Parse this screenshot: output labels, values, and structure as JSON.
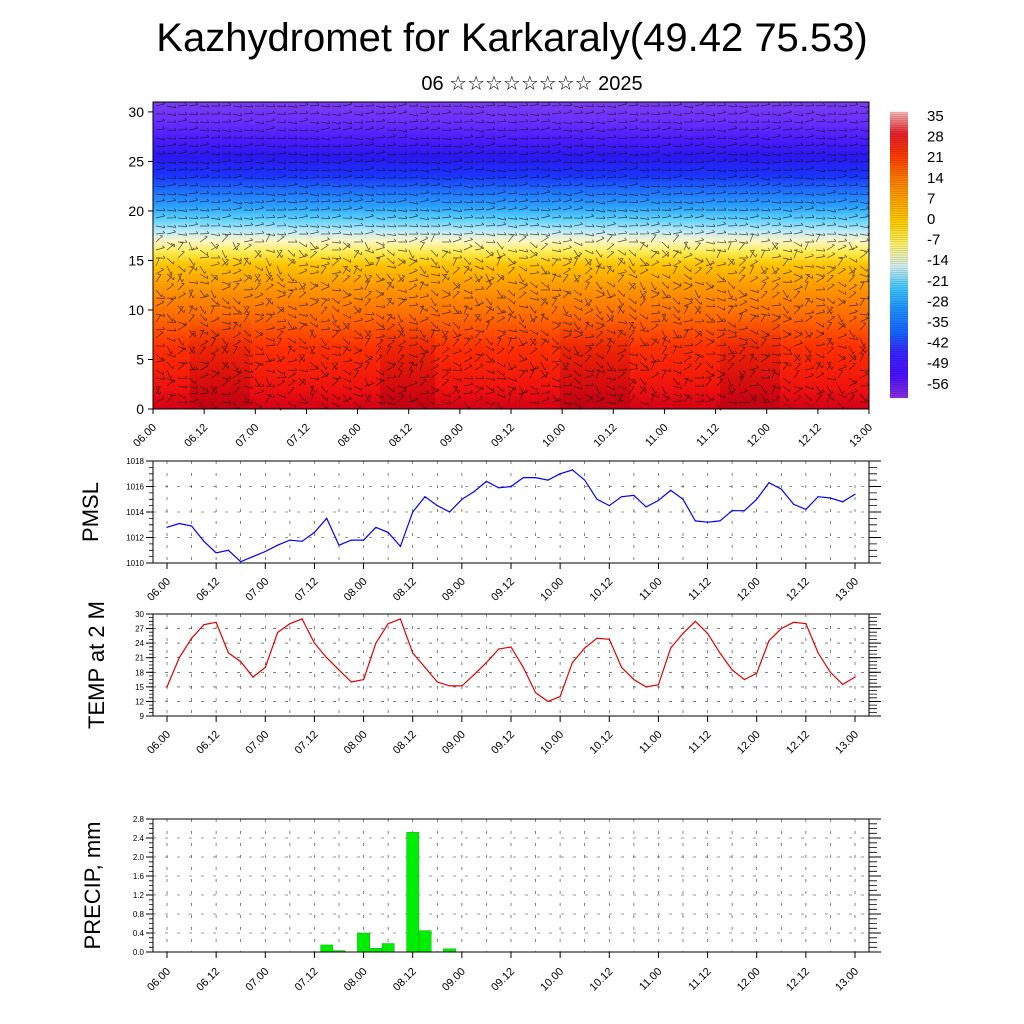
{
  "title": "Kazhydromet for Karkaraly(49.42 75.53)",
  "subtitle": "06 ☆☆☆☆☆☆☆☆ 2025",
  "chart_data": [
    {
      "type": "heatmap",
      "name": "temperature-wind cross-section",
      "ylim": [
        0,
        31
      ],
      "yticks": [
        0,
        5,
        10,
        15,
        20,
        25,
        30
      ],
      "x_tick_labels": [
        "06.00",
        "06.12",
        "07.00",
        "07.12",
        "08.00",
        "08.12",
        "09.00",
        "09.12",
        "10.00",
        "10.12",
        "11.00",
        "11.12",
        "12.00",
        "12.12",
        "13.00"
      ],
      "colorbar_labels": [
        "35",
        "28",
        "21",
        "14",
        "7",
        "0",
        "-7",
        "-14",
        "-21",
        "-28",
        "-35",
        "-42",
        "-49",
        "-56"
      ],
      "colorbar_colors": [
        "#f4b8b8",
        "#e8202a",
        "#ff3b00",
        "#ff7a00",
        "#ffa500",
        "#ffd000",
        "#fff36b",
        "#d8f0f0",
        "#3fc8ff",
        "#1e90ff",
        "#1565ff",
        "#3a22ff",
        "#4a10ff",
        "#8a2ee0"
      ]
    },
    {
      "type": "line",
      "name": "pmsl",
      "ylabel": "PMSL",
      "ylim": [
        1010,
        1018
      ],
      "yticks": [
        1010,
        1012,
        1014,
        1016,
        1018
      ],
      "x_tick_labels": [
        "06.00",
        "06.12",
        "07.00",
        "07.12",
        "08.00",
        "08.12",
        "09.00",
        "09.12",
        "10.00",
        "10.12",
        "11.00",
        "11.12",
        "12.00",
        "12.12",
        "13.00"
      ],
      "color": "#0000ff",
      "values": [
        1012.8,
        1013.1,
        1012.9,
        1011.7,
        1010.8,
        1011.0,
        1010.1,
        1010.5,
        1010.9,
        1011.4,
        1011.8,
        1011.7,
        1012.4,
        1013.5,
        1011.4,
        1011.8,
        1011.8,
        1012.8,
        1012.4,
        1011.3,
        1014.0,
        1015.2,
        1014.5,
        1014.0,
        1015.0,
        1015.6,
        1016.4,
        1015.9,
        1016.0,
        1016.7,
        1016.7,
        1016.5,
        1017.0,
        1017.3,
        1016.5,
        1015.0,
        1014.5,
        1015.2,
        1015.3,
        1014.4,
        1014.9,
        1015.7,
        1015.0,
        1013.3,
        1013.2,
        1013.3,
        1014.1,
        1014.1,
        1015.0,
        1016.3,
        1015.8,
        1014.6,
        1014.2,
        1015.2,
        1015.1,
        1014.8,
        1015.4
      ]
    },
    {
      "type": "line",
      "name": "temp2m",
      "ylabel": "TEMP at 2 M",
      "ylim": [
        9,
        30
      ],
      "yticks": [
        9,
        12,
        15,
        18,
        21,
        24,
        27,
        30
      ],
      "x_tick_labels": [
        "06.00",
        "06.12",
        "07.00",
        "07.12",
        "08.00",
        "08.12",
        "09.00",
        "09.12",
        "10.00",
        "10.12",
        "11.00",
        "11.12",
        "12.00",
        "12.12",
        "13.00"
      ],
      "color": "#e00000",
      "values": [
        15.0,
        21.0,
        25.0,
        27.8,
        28.3,
        22.0,
        20.2,
        17.0,
        19.0,
        26.2,
        28.0,
        29.0,
        24.0,
        21.0,
        18.5,
        16.0,
        16.5,
        24.0,
        28.0,
        29.0,
        22.0,
        19.0,
        16.0,
        15.2,
        15.2,
        17.5,
        20.0,
        22.8,
        23.2,
        19.0,
        13.8,
        12.0,
        13.0,
        20.0,
        23.0,
        25.0,
        24.8,
        19.0,
        16.5,
        15.0,
        15.4,
        23.0,
        26.0,
        28.5,
        26.0,
        22.0,
        18.5,
        16.5,
        17.8,
        24.5,
        27.0,
        28.3,
        28.0,
        22.0,
        18.0,
        15.5,
        17.0
      ]
    },
    {
      "type": "bar",
      "name": "precip",
      "ylabel": "PRECIP, mm",
      "ylim": [
        0,
        2.8
      ],
      "yticks": [
        "0.0",
        "0.4",
        "0.8",
        "1.2",
        "1.6",
        "2.0",
        "2.4",
        "2.8"
      ],
      "x_tick_labels": [
        "06.00",
        "06.12",
        "07.00",
        "07.12",
        "08.00",
        "08.12",
        "09.00",
        "09.12",
        "10.00",
        "10.12",
        "11.00",
        "11.12",
        "12.00",
        "12.12",
        "13.00"
      ],
      "color": "#00ee00",
      "values": [
        0,
        0,
        0,
        0,
        0,
        0,
        0,
        0,
        0,
        0,
        0,
        0,
        0,
        0.15,
        0.03,
        0,
        0.4,
        0.08,
        0.18,
        0,
        2.52,
        0.45,
        0,
        0.07,
        0,
        0,
        0,
        0,
        0,
        0,
        0,
        0,
        0,
        0,
        0,
        0,
        0,
        0,
        0,
        0,
        0,
        0,
        0,
        0,
        0,
        0,
        0,
        0,
        0,
        0,
        0,
        0,
        0,
        0,
        0,
        0,
        0
      ]
    }
  ]
}
